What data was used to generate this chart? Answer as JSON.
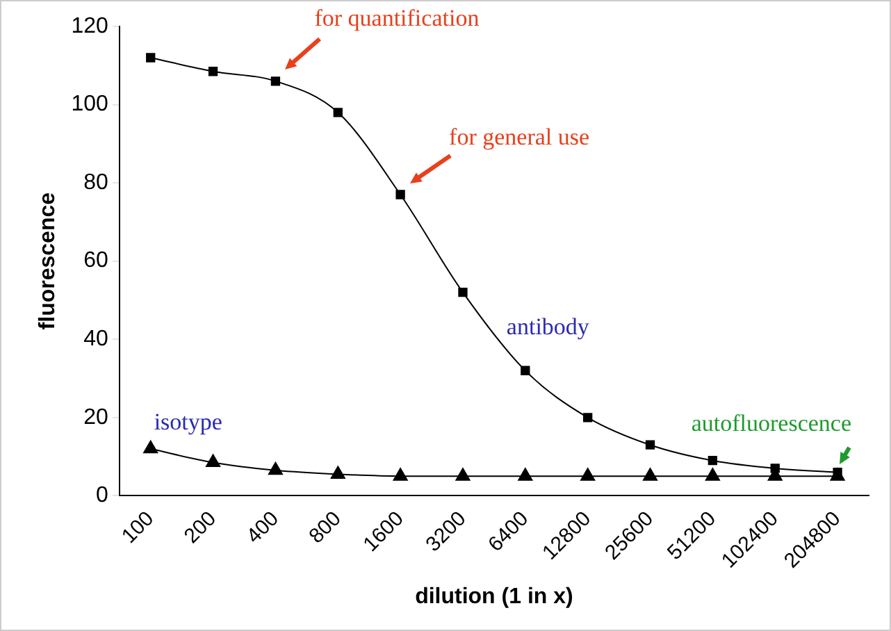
{
  "chart_data": {
    "type": "line",
    "xlabel": "dilution (1 in x)",
    "ylabel": "fluorescence",
    "categories": [
      "100",
      "200",
      "400",
      "800",
      "1600",
      "3200",
      "6400",
      "12800",
      "25600",
      "51200",
      "102400",
      "204800"
    ],
    "series": [
      {
        "name": "antibody",
        "color": "#000000",
        "marker": "square",
        "values": [
          112,
          108.5,
          106,
          98,
          77,
          52,
          32,
          20,
          13,
          9,
          7,
          6
        ]
      },
      {
        "name": "isotype",
        "color": "#000000",
        "marker": "triangle",
        "values": [
          12,
          8.5,
          6.5,
          5.5,
          5,
          5,
          5,
          5,
          5,
          5,
          5,
          5
        ]
      }
    ],
    "ylim": [
      0,
      120
    ],
    "yticks": [
      0,
      20,
      40,
      60,
      80,
      100,
      120
    ],
    "grid": false,
    "legend": false,
    "annotations": [
      {
        "text": "for quantification",
        "x": "400",
        "y": 106
      },
      {
        "text": "for general use",
        "x": "1600",
        "y": 77
      },
      {
        "text": "autofluorescence",
        "x": "204800",
        "y": 6
      }
    ]
  }
}
